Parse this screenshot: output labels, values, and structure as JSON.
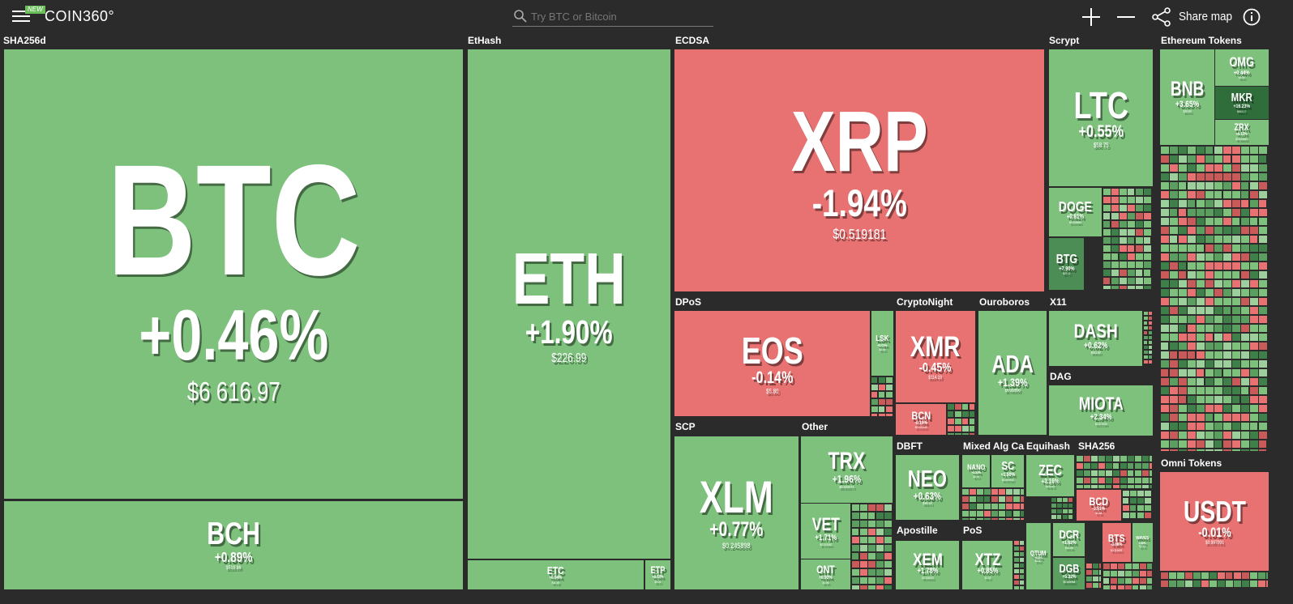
{
  "header": {
    "badge": "NEW",
    "logo": "COIN360°",
    "search_placeholder": "Try BTC or Bitcoin",
    "share": "Share map"
  },
  "groups": [
    {
      "label": "SHA256d"
    },
    {
      "label": "EtHash"
    },
    {
      "label": "ECDSA"
    },
    {
      "label": "Scrypt"
    },
    {
      "label": "Ethereum Tokens"
    },
    {
      "label": "DPoS"
    },
    {
      "label": "CryptoNight"
    },
    {
      "label": "Ouroboros"
    },
    {
      "label": "X11"
    },
    {
      "label": "DAG"
    },
    {
      "label": "SCP"
    },
    {
      "label": "Other"
    },
    {
      "label": "DBFT"
    },
    {
      "label": "Mixed Alg Ca..."
    },
    {
      "label": "Equihash"
    },
    {
      "label": "SHA256"
    },
    {
      "label": "Apostille"
    },
    {
      "label": "PoS"
    },
    {
      "label": "Omni Tokens"
    }
  ],
  "tiles": [
    {
      "symbol": "BTC",
      "change": "+0.46%",
      "price": "$6 616.97",
      "color": "#7dc17d"
    },
    {
      "symbol": "BCH",
      "change": "+0.89%",
      "price": "$519.86",
      "color": "#7dc17d"
    },
    {
      "symbol": "ETH",
      "change": "+1.90%",
      "price": "$226.99",
      "color": "#7dc17d"
    },
    {
      "symbol": "ETC",
      "change": "+0.04%",
      "price": "$11.08",
      "color": "#7dc17d"
    },
    {
      "symbol": "ETP",
      "change": "+0.53%",
      "price": "$3.22",
      "color": "#7dc17d"
    },
    {
      "symbol": "XRP",
      "change": "-1.94%",
      "price": "$0.519181",
      "color": "#e87171"
    },
    {
      "symbol": "LTC",
      "change": "+0.55%",
      "price": "$58.75",
      "color": "#7dc17d"
    },
    {
      "symbol": "DOGE",
      "change": "+0.61%",
      "price": "$0.005685",
      "color": "#7dc17d"
    },
    {
      "symbol": "BTG",
      "change": "+7.90%",
      "price": "$27.17",
      "color": "#4c8c55"
    },
    {
      "symbol": "EOS",
      "change": "-0.14%",
      "price": "$5.80",
      "color": "#e87171"
    },
    {
      "symbol": "LSK",
      "change": "+0.01%",
      "price": "$3.34",
      "color": "#7dc17d"
    },
    {
      "symbol": "XMR",
      "change": "-0.45%",
      "price": "$114.19",
      "color": "#e87171"
    },
    {
      "symbol": "BCN",
      "change": "-0.19%",
      "price": "$0.002243",
      "color": "#e87171"
    },
    {
      "symbol": "ADA",
      "change": "+1.39%",
      "price": "$0.082890",
      "color": "#7dc17d"
    },
    {
      "symbol": "DASH",
      "change": "+0.62%",
      "price": "$181.83",
      "color": "#7dc17d"
    },
    {
      "symbol": "MIOTA",
      "change": "+2.34%",
      "price": "$0.571909",
      "color": "#7dc17d"
    },
    {
      "symbol": "XLM",
      "change": "+0.77%",
      "price": "$0.245898",
      "color": "#7dc17d"
    },
    {
      "symbol": "TRX",
      "change": "+1.96%",
      "price": "$0.023274",
      "color": "#7dc17d"
    },
    {
      "symbol": "VET",
      "change": "+1.71%",
      "price": "$0.013082",
      "color": "#7dc17d"
    },
    {
      "symbol": "ONT",
      "change": "+0.93%",
      "price": "$1.95",
      "color": "#7dc17d"
    },
    {
      "symbol": "NEO",
      "change": "+0.63%",
      "price": "$18.14",
      "color": "#7dc17d"
    },
    {
      "symbol": "NANO",
      "change": "+0.32%",
      "price": "$2.19",
      "color": "#7dc17d"
    },
    {
      "symbol": "SC",
      "change": "+1.50%",
      "price": "$0.007642",
      "color": "#7dc17d"
    },
    {
      "symbol": "ZEC",
      "change": "+3.16%",
      "price": "$128.42",
      "color": "#7dc17d"
    },
    {
      "symbol": "XEM",
      "change": "+1.78%",
      "price": "$0.106023",
      "color": "#7dc17d"
    },
    {
      "symbol": "XTZ",
      "change": "+0.85%",
      "price": "$1.32",
      "color": "#7dc17d"
    },
    {
      "symbol": "QTUM",
      "change": "+0.31%",
      "price": "$3.82",
      "color": "#7dc17d"
    },
    {
      "symbol": "DCR",
      "change": "+1.62%",
      "price": "$41.86",
      "color": "#7dc17d"
    },
    {
      "symbol": "DGB",
      "change": "+5.32%",
      "price": "$0.025984",
      "color": "#5a9f5f"
    },
    {
      "symbol": "BTS",
      "change": "-0.08%",
      "price": "$0.111603",
      "color": "#e87171"
    },
    {
      "symbol": "WAVES",
      "change": "2.50%",
      "price": "$2.20",
      "color": "#7dc17d"
    },
    {
      "symbol": "BCD",
      "change": "-3.51%",
      "price": "$1.98",
      "color": "#e87171"
    },
    {
      "symbol": "BNB",
      "change": "+3.65%",
      "price": "$10.63",
      "color": "#7dc17d"
    },
    {
      "symbol": "OMG",
      "change": "+0.44%",
      "price": "$3.50",
      "color": "#7dc17d"
    },
    {
      "symbol": "MKR",
      "change": "+16.23%",
      "price": "$614.17",
      "color": "#2f6e3a"
    },
    {
      "symbol": "ZRX",
      "change": "+0.13%",
      "price": "$0.644481",
      "color": "#7dc17d"
    },
    {
      "symbol": "USDT",
      "change": "-0.01%",
      "price": "$0.997091",
      "color": "#e87171"
    }
  ]
}
